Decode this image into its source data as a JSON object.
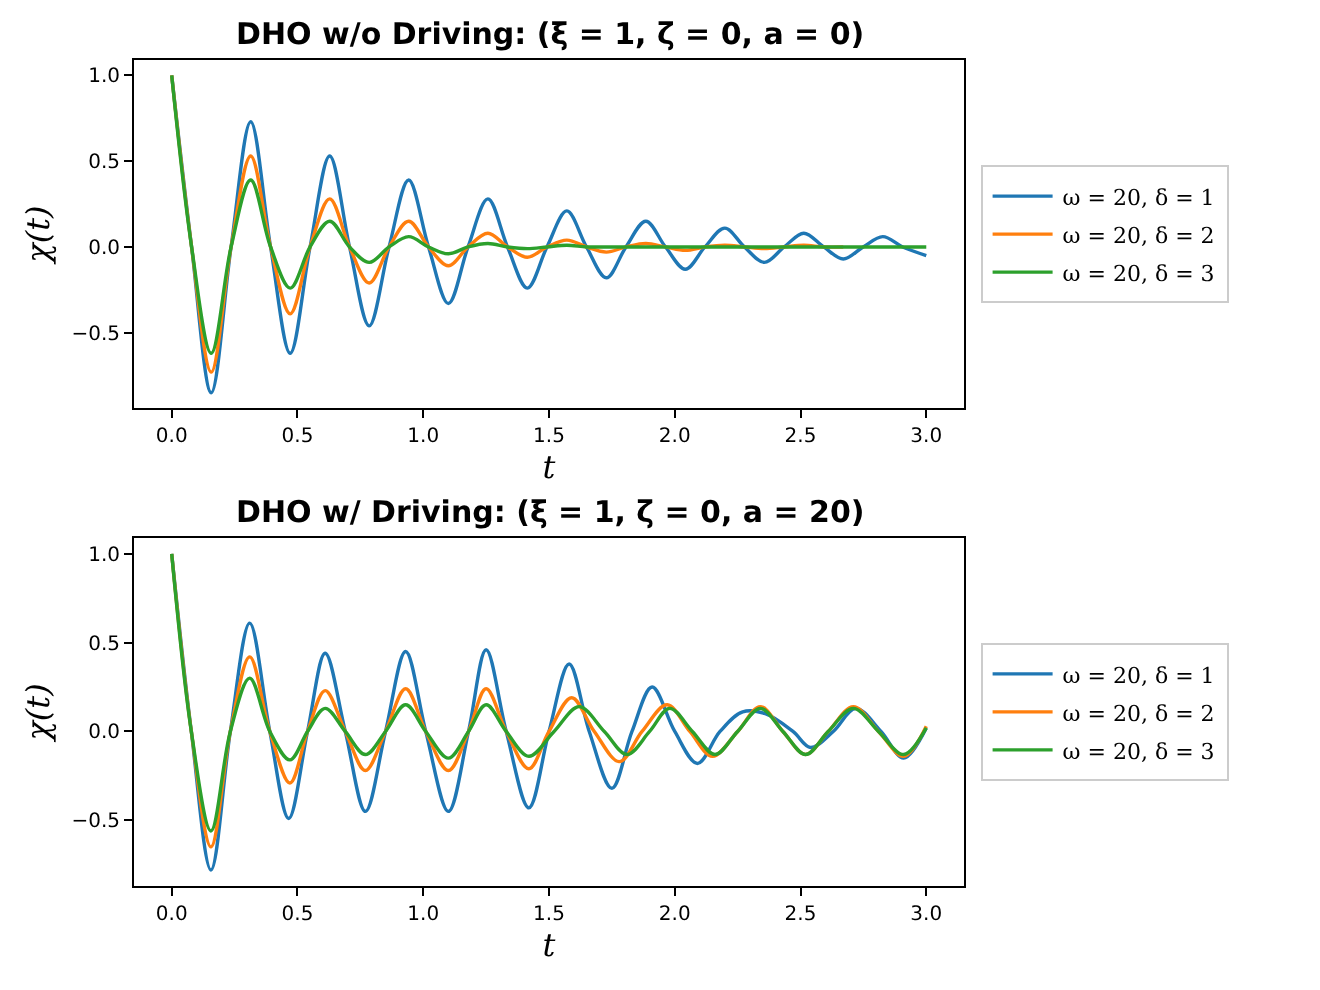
{
  "chart_data": [
    {
      "type": "line",
      "title": "DHO w/o Driving: (ξ = 1, ζ = 0, a = 0)",
      "xlabel": "t",
      "ylabel": "χ(t)",
      "legend": "right",
      "xlim": [
        -0.15,
        3.15
      ],
      "ylim": [
        -0.94,
        1.09
      ],
      "xticks": [
        {
          "value": 0,
          "label": "0.0"
        },
        {
          "value": 0.5,
          "label": "0.5"
        },
        {
          "value": 1,
          "label": "1.0"
        },
        {
          "value": 1.5,
          "label": "1.5"
        },
        {
          "value": 2,
          "label": "2.0"
        },
        {
          "value": 2.5,
          "label": "2.5"
        },
        {
          "value": 3,
          "label": "3.0"
        }
      ],
      "yticks": [
        {
          "value": -0.5,
          "label": "−0.5"
        },
        {
          "value": 0,
          "label": "0.0"
        },
        {
          "value": 0.5,
          "label": "0.5"
        },
        {
          "value": 1,
          "label": "1.0"
        }
      ],
      "series": [
        {
          "name": "ω = 20, δ = 1",
          "color": "#1f77b4",
          "x": [
            0,
            0.079,
            0.157,
            0.236,
            0.314,
            0.393,
            0.471,
            0.55,
            0.628,
            0.707,
            0.785,
            0.864,
            0.942,
            1.021,
            1.1,
            1.178,
            1.257,
            1.335,
            1.414,
            1.492,
            1.571,
            1.649,
            1.728,
            1.806,
            1.885,
            1.963,
            2.042,
            2.12,
            2.199,
            2.277,
            2.356,
            2.435,
            2.513,
            2.592,
            2.67,
            2.749,
            2.827,
            2.906,
            3.0
          ],
          "values": [
            1,
            0,
            -0.85,
            0,
            0.73,
            0,
            -0.62,
            0,
            0.53,
            0,
            -0.46,
            0,
            0.39,
            0,
            -0.33,
            0,
            0.28,
            0,
            -0.24,
            0,
            0.21,
            0,
            -0.18,
            0,
            0.15,
            0,
            -0.13,
            0,
            0.11,
            0,
            -0.09,
            0,
            0.08,
            0,
            -0.07,
            0,
            0.06,
            0,
            -0.05
          ]
        },
        {
          "name": "ω = 20, δ = 2",
          "color": "#ff7f0e",
          "x": [
            0,
            0.079,
            0.157,
            0.236,
            0.314,
            0.393,
            0.471,
            0.55,
            0.628,
            0.707,
            0.785,
            0.864,
            0.942,
            1.021,
            1.1,
            1.178,
            1.257,
            1.335,
            1.414,
            1.492,
            1.571,
            1.649,
            1.728,
            1.806,
            1.885,
            1.963,
            2.042,
            2.12,
            2.199,
            2.277,
            2.356,
            2.435,
            2.513,
            2.592,
            2.67
          ],
          "values": [
            1,
            0,
            -0.73,
            0,
            0.53,
            0,
            -0.39,
            0,
            0.28,
            0,
            -0.21,
            0,
            0.15,
            0,
            -0.11,
            0,
            0.08,
            0,
            -0.06,
            0,
            0.04,
            0,
            -0.03,
            0,
            0.02,
            0,
            -0.02,
            0,
            0.01,
            0,
            -0.01,
            0,
            0.01,
            0,
            0
          ]
        },
        {
          "name": "ω = 20, δ = 3",
          "color": "#2ca02c",
          "x": [
            0,
            0.079,
            0.157,
            0.236,
            0.314,
            0.393,
            0.471,
            0.55,
            0.628,
            0.707,
            0.785,
            0.864,
            0.942,
            1.021,
            1.1,
            1.178,
            1.257,
            1.335,
            1.414,
            1.492,
            1.571,
            1.649,
            1.728,
            1.806,
            1.885,
            1.963,
            2.042,
            2.12,
            2.199,
            2.277,
            2.356,
            2.435,
            2.513,
            2.592,
            2.67,
            2.749,
            2.827,
            2.906,
            3.0
          ],
          "values": [
            1,
            0,
            -0.62,
            0,
            0.39,
            0,
            -0.24,
            0,
            0.15,
            0,
            -0.09,
            0,
            0.06,
            0,
            -0.04,
            0,
            0.02,
            0,
            -0.01,
            0,
            0.01,
            0,
            0,
            0,
            0,
            0,
            0,
            0,
            0,
            0,
            0,
            0,
            0,
            0,
            0,
            0,
            0,
            0,
            0
          ]
        }
      ]
    },
    {
      "type": "line",
      "title": "DHO w/ Driving: (ξ = 1, ζ = 0, a = 20)",
      "xlabel": "t",
      "ylabel": "χ(t)",
      "legend": "right",
      "xlim": [
        -0.15,
        3.15
      ],
      "ylim": [
        -0.87,
        1.09
      ],
      "xticks": [
        {
          "value": 0,
          "label": "0.0"
        },
        {
          "value": 0.5,
          "label": "0.5"
        },
        {
          "value": 1,
          "label": "1.0"
        },
        {
          "value": 1.5,
          "label": "1.5"
        },
        {
          "value": 2,
          "label": "2.0"
        },
        {
          "value": 2.5,
          "label": "2.5"
        },
        {
          "value": 3,
          "label": "3.0"
        }
      ],
      "yticks": [
        {
          "value": -0.5,
          "label": "−0.5"
        },
        {
          "value": 0,
          "label": "0.0"
        },
        {
          "value": 0.5,
          "label": "0.5"
        },
        {
          "value": 1,
          "label": "1.0"
        }
      ],
      "series": [
        {
          "name": "ω = 20, δ = 1",
          "color": "#1f77b4",
          "x": [
            0,
            0.078,
            0.156,
            0.233,
            0.31,
            0.39,
            0.465,
            0.54,
            0.61,
            0.69,
            0.77,
            0.85,
            0.93,
            1.01,
            1.1,
            1.18,
            1.25,
            1.33,
            1.42,
            1.5,
            1.58,
            1.66,
            1.75,
            1.83,
            1.91,
            2.0,
            2.09,
            2.18,
            2.27,
            2.36,
            2.47,
            2.54,
            2.63,
            2.72,
            2.82,
            2.91,
            3.0
          ],
          "values": [
            1,
            0,
            -0.78,
            0,
            0.61,
            0,
            -0.49,
            0,
            0.44,
            0,
            -0.45,
            0,
            0.45,
            0,
            -0.45,
            0,
            0.46,
            0,
            -0.43,
            0,
            0.38,
            0,
            -0.32,
            0,
            0.25,
            0,
            -0.18,
            0,
            0.11,
            0.1,
            0,
            -0.09,
            0,
            0.13,
            0,
            -0.15,
            0.02
          ]
        },
        {
          "name": "ω = 20, δ = 2",
          "color": "#ff7f0e",
          "x": [
            0,
            0.078,
            0.156,
            0.233,
            0.31,
            0.39,
            0.47,
            0.54,
            0.61,
            0.69,
            0.77,
            0.85,
            0.93,
            1.01,
            1.1,
            1.18,
            1.25,
            1.33,
            1.42,
            1.5,
            1.59,
            1.68,
            1.78,
            1.87,
            1.97,
            2.06,
            2.15,
            2.25,
            2.34,
            2.43,
            2.52,
            2.61,
            2.71,
            2.81,
            2.91,
            3.0
          ],
          "values": [
            1,
            0,
            -0.65,
            0,
            0.42,
            0,
            -0.29,
            0,
            0.23,
            0,
            -0.22,
            0,
            0.24,
            0,
            -0.22,
            0,
            0.24,
            0,
            -0.21,
            0,
            0.19,
            0,
            -0.17,
            0,
            0.15,
            0,
            -0.14,
            0,
            0.14,
            0,
            -0.13,
            0,
            0.14,
            0,
            -0.14,
            0.03
          ]
        },
        {
          "name": "ω = 20, δ = 3",
          "color": "#2ca02c",
          "x": [
            0,
            0.078,
            0.156,
            0.233,
            0.31,
            0.39,
            0.47,
            0.54,
            0.61,
            0.69,
            0.77,
            0.85,
            0.93,
            1.01,
            1.1,
            1.18,
            1.25,
            1.33,
            1.42,
            1.52,
            1.62,
            1.72,
            1.81,
            1.9,
            1.98,
            2.07,
            2.16,
            2.25,
            2.34,
            2.43,
            2.52,
            2.61,
            2.71,
            2.81,
            2.91,
            3.0
          ],
          "values": [
            1,
            0,
            -0.56,
            0,
            0.3,
            0,
            -0.16,
            0,
            0.13,
            0,
            -0.13,
            0,
            0.15,
            0,
            -0.15,
            0,
            0.15,
            0,
            -0.14,
            0,
            0.14,
            0,
            -0.13,
            0,
            0.13,
            0,
            -0.13,
            0,
            0.13,
            0,
            -0.13,
            0,
            0.13,
            0,
            -0.13,
            0.02
          ]
        }
      ]
    }
  ]
}
